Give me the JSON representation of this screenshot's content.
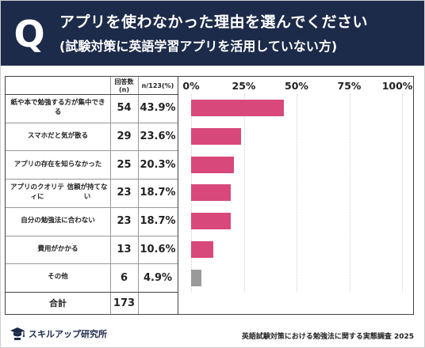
{
  "header": {
    "q": "Q",
    "title": "アプリを使わなかった理由を選んでください",
    "subtitle": "(試験対策に英語学習アプリを活用していない方)"
  },
  "table": {
    "col_count": "回答数(n)",
    "col_pct": "n/123(%)",
    "total_label": "合計",
    "total_value": "173"
  },
  "chart_data": {
    "type": "bar",
    "orientation": "horizontal",
    "categories": [
      "紙や本で勉強する方が集中できる",
      "スマホだと気が散る",
      "アプリの存在を知らなかった",
      "アプリのクオリティに 信頼が持てない",
      "自分の勉強法に合わない",
      "費用がかかる",
      "その他"
    ],
    "counts": [
      54,
      29,
      25,
      23,
      23,
      13,
      6
    ],
    "values": [
      43.9,
      23.6,
      20.3,
      18.7,
      18.7,
      10.6,
      4.9
    ],
    "value_labels": [
      "43.9%",
      "23.6%",
      "20.3%",
      "18.7%",
      "18.7%",
      "10.6%",
      "4.9%"
    ],
    "xlim": [
      0,
      100
    ],
    "x_ticks": [
      0,
      25,
      50,
      75,
      100
    ],
    "x_tick_labels": [
      "0%",
      "25%",
      "50%",
      "75%",
      "100%"
    ],
    "bar_color": "#d9487a",
    "other_color": "#9a9a9a",
    "grid": true
  },
  "footer": {
    "brand": "スキルアップ研究所",
    "source": "英語試験対策における勉強法に関する実態調査 2025"
  },
  "colors": {
    "header_bg": "#1d2b4a",
    "bar": "#d9487a",
    "other_bar": "#9a9a9a"
  }
}
